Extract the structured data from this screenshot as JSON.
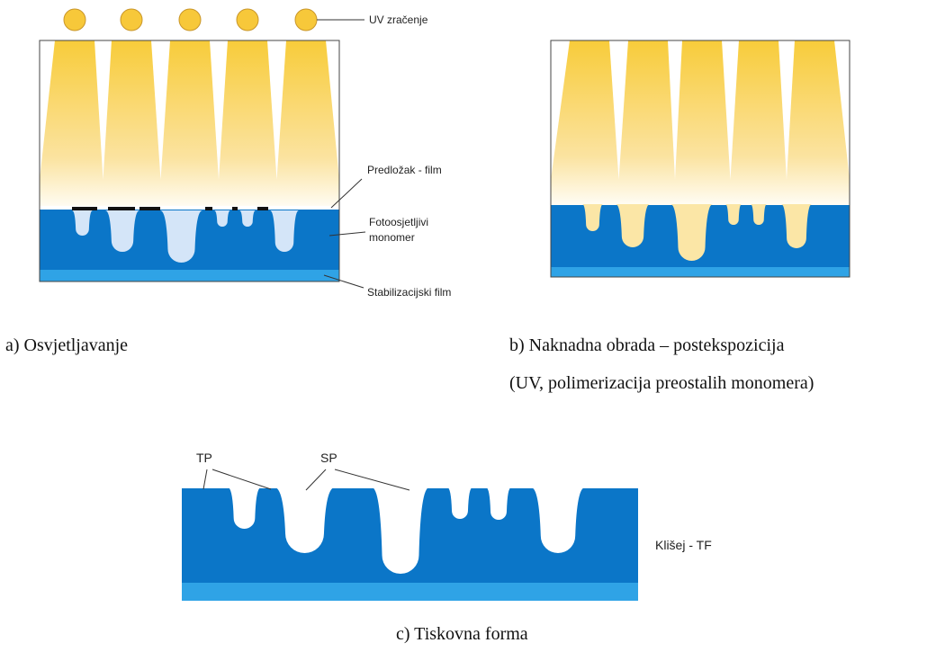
{
  "labels": {
    "uv": "UV zračenje",
    "film": "Predložak - film",
    "monomer_1": "Fotoosjetljivi",
    "monomer_2": "monomer",
    "stab": "Stabilizacijski film",
    "tp": "TP",
    "sp": "SP",
    "cliche": "Klišej - TF"
  },
  "captions": {
    "a": "a) Osvjetljavanje",
    "b_1": "b) Naknadna obrada – postekspozicija",
    "b_2": "(UV, polimerizacija preostalih monomera)",
    "c": "c) Tiskovna forma"
  }
}
